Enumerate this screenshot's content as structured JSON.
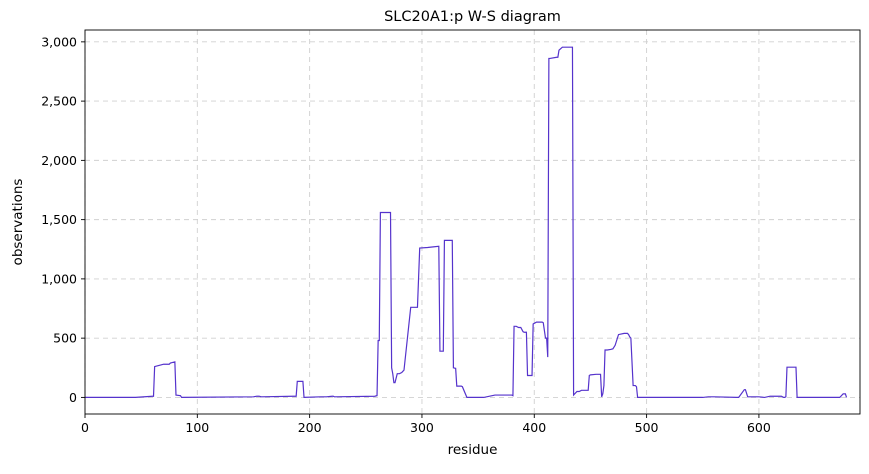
{
  "chart_data": {
    "type": "line",
    "title": "SLC20A1:p W-S diagram",
    "xlabel": "residue",
    "ylabel": "observations",
    "xlim": [
      0,
      690
    ],
    "ylim": [
      -140,
      3100
    ],
    "xticks": [
      0,
      100,
      200,
      300,
      400,
      500,
      600
    ],
    "yticks": [
      0,
      500,
      1000,
      1500,
      2000,
      2500,
      3000
    ],
    "xtick_labels": [
      "0",
      "100",
      "200",
      "300",
      "400",
      "500",
      "600"
    ],
    "ytick_labels": [
      "0",
      "500",
      "1,000",
      "1,500",
      "2,000",
      "2,500",
      "3,000"
    ],
    "grid": true,
    "line_color": "#5533cc",
    "series": [
      {
        "x": [
          0,
          45,
          60,
          61,
          62,
          68,
          70,
          75,
          76,
          80,
          81,
          85,
          86,
          150,
          153,
          155,
          157,
          185,
          188,
          189,
          194,
          195,
          210,
          215,
          220,
          221,
          222,
          258,
          260,
          261,
          262,
          263,
          264,
          265,
          266,
          268,
          272,
          273,
          274,
          275,
          276,
          278,
          280,
          282,
          283,
          284,
          290,
          291,
          292,
          295,
          296,
          298,
          305,
          310,
          315,
          316,
          318,
          319,
          320,
          325,
          326,
          327,
          328,
          330,
          331,
          335,
          336,
          340,
          355,
          365,
          368,
          380,
          381,
          382,
          384,
          386,
          388,
          390,
          391,
          393,
          394,
          395,
          396,
          397,
          398,
          399,
          400,
          402,
          405,
          407,
          408,
          410,
          411,
          412,
          413,
          414,
          420,
          421,
          422,
          425,
          426,
          428,
          432,
          433,
          434,
          435,
          438,
          440,
          442,
          443,
          448,
          449,
          450,
          455,
          456,
          457,
          458,
          459,
          460,
          461,
          462,
          463,
          465,
          468,
          470,
          472,
          475,
          480,
          483,
          484,
          485,
          486,
          488,
          490,
          491,
          492,
          550,
          555,
          560,
          580,
          582,
          587,
          588,
          590,
          600,
          605,
          610,
          620,
          622,
          623,
          624,
          625,
          626,
          632,
          633,
          634,
          635,
          640,
          670,
          672,
          675,
          677,
          678
        ],
        "values": [
          0,
          0,
          10,
          10,
          260,
          275,
          280,
          280,
          290,
          300,
          20,
          15,
          0,
          5,
          10,
          10,
          5,
          10,
          10,
          135,
          135,
          0,
          5,
          5,
          10,
          10,
          5,
          10,
          15,
          480,
          480,
          1560,
          1560,
          1560,
          1560,
          1560,
          1560,
          250,
          200,
          125,
          125,
          200,
          200,
          210,
          220,
          230,
          760,
          760,
          760,
          760,
          760,
          1260,
          1265,
          1270,
          1275,
          390,
          390,
          390,
          1325,
          1325,
          1325,
          1325,
          250,
          245,
          95,
          95,
          90,
          0,
          0,
          20,
          20,
          20,
          15,
          600,
          600,
          590,
          590,
          555,
          550,
          550,
          185,
          185,
          185,
          185,
          185,
          620,
          625,
          635,
          635,
          635,
          630,
          500,
          500,
          340,
          2860,
          2860,
          2870,
          2870,
          2930,
          2955,
          2955,
          2955,
          2955,
          2955,
          2955,
          20,
          50,
          50,
          60,
          60,
          60,
          185,
          190,
          195,
          195,
          195,
          195,
          195,
          5,
          30,
          100,
          400,
          400,
          405,
          410,
          440,
          530,
          540,
          540,
          530,
          510,
          500,
          100,
          100,
          90,
          0,
          0,
          5,
          5,
          0,
          0,
          65,
          65,
          5,
          5,
          0,
          10,
          10,
          0,
          0,
          5,
          255,
          255,
          255,
          255,
          0,
          0,
          0,
          0,
          0,
          30,
          30,
          0
        ]
      }
    ]
  }
}
